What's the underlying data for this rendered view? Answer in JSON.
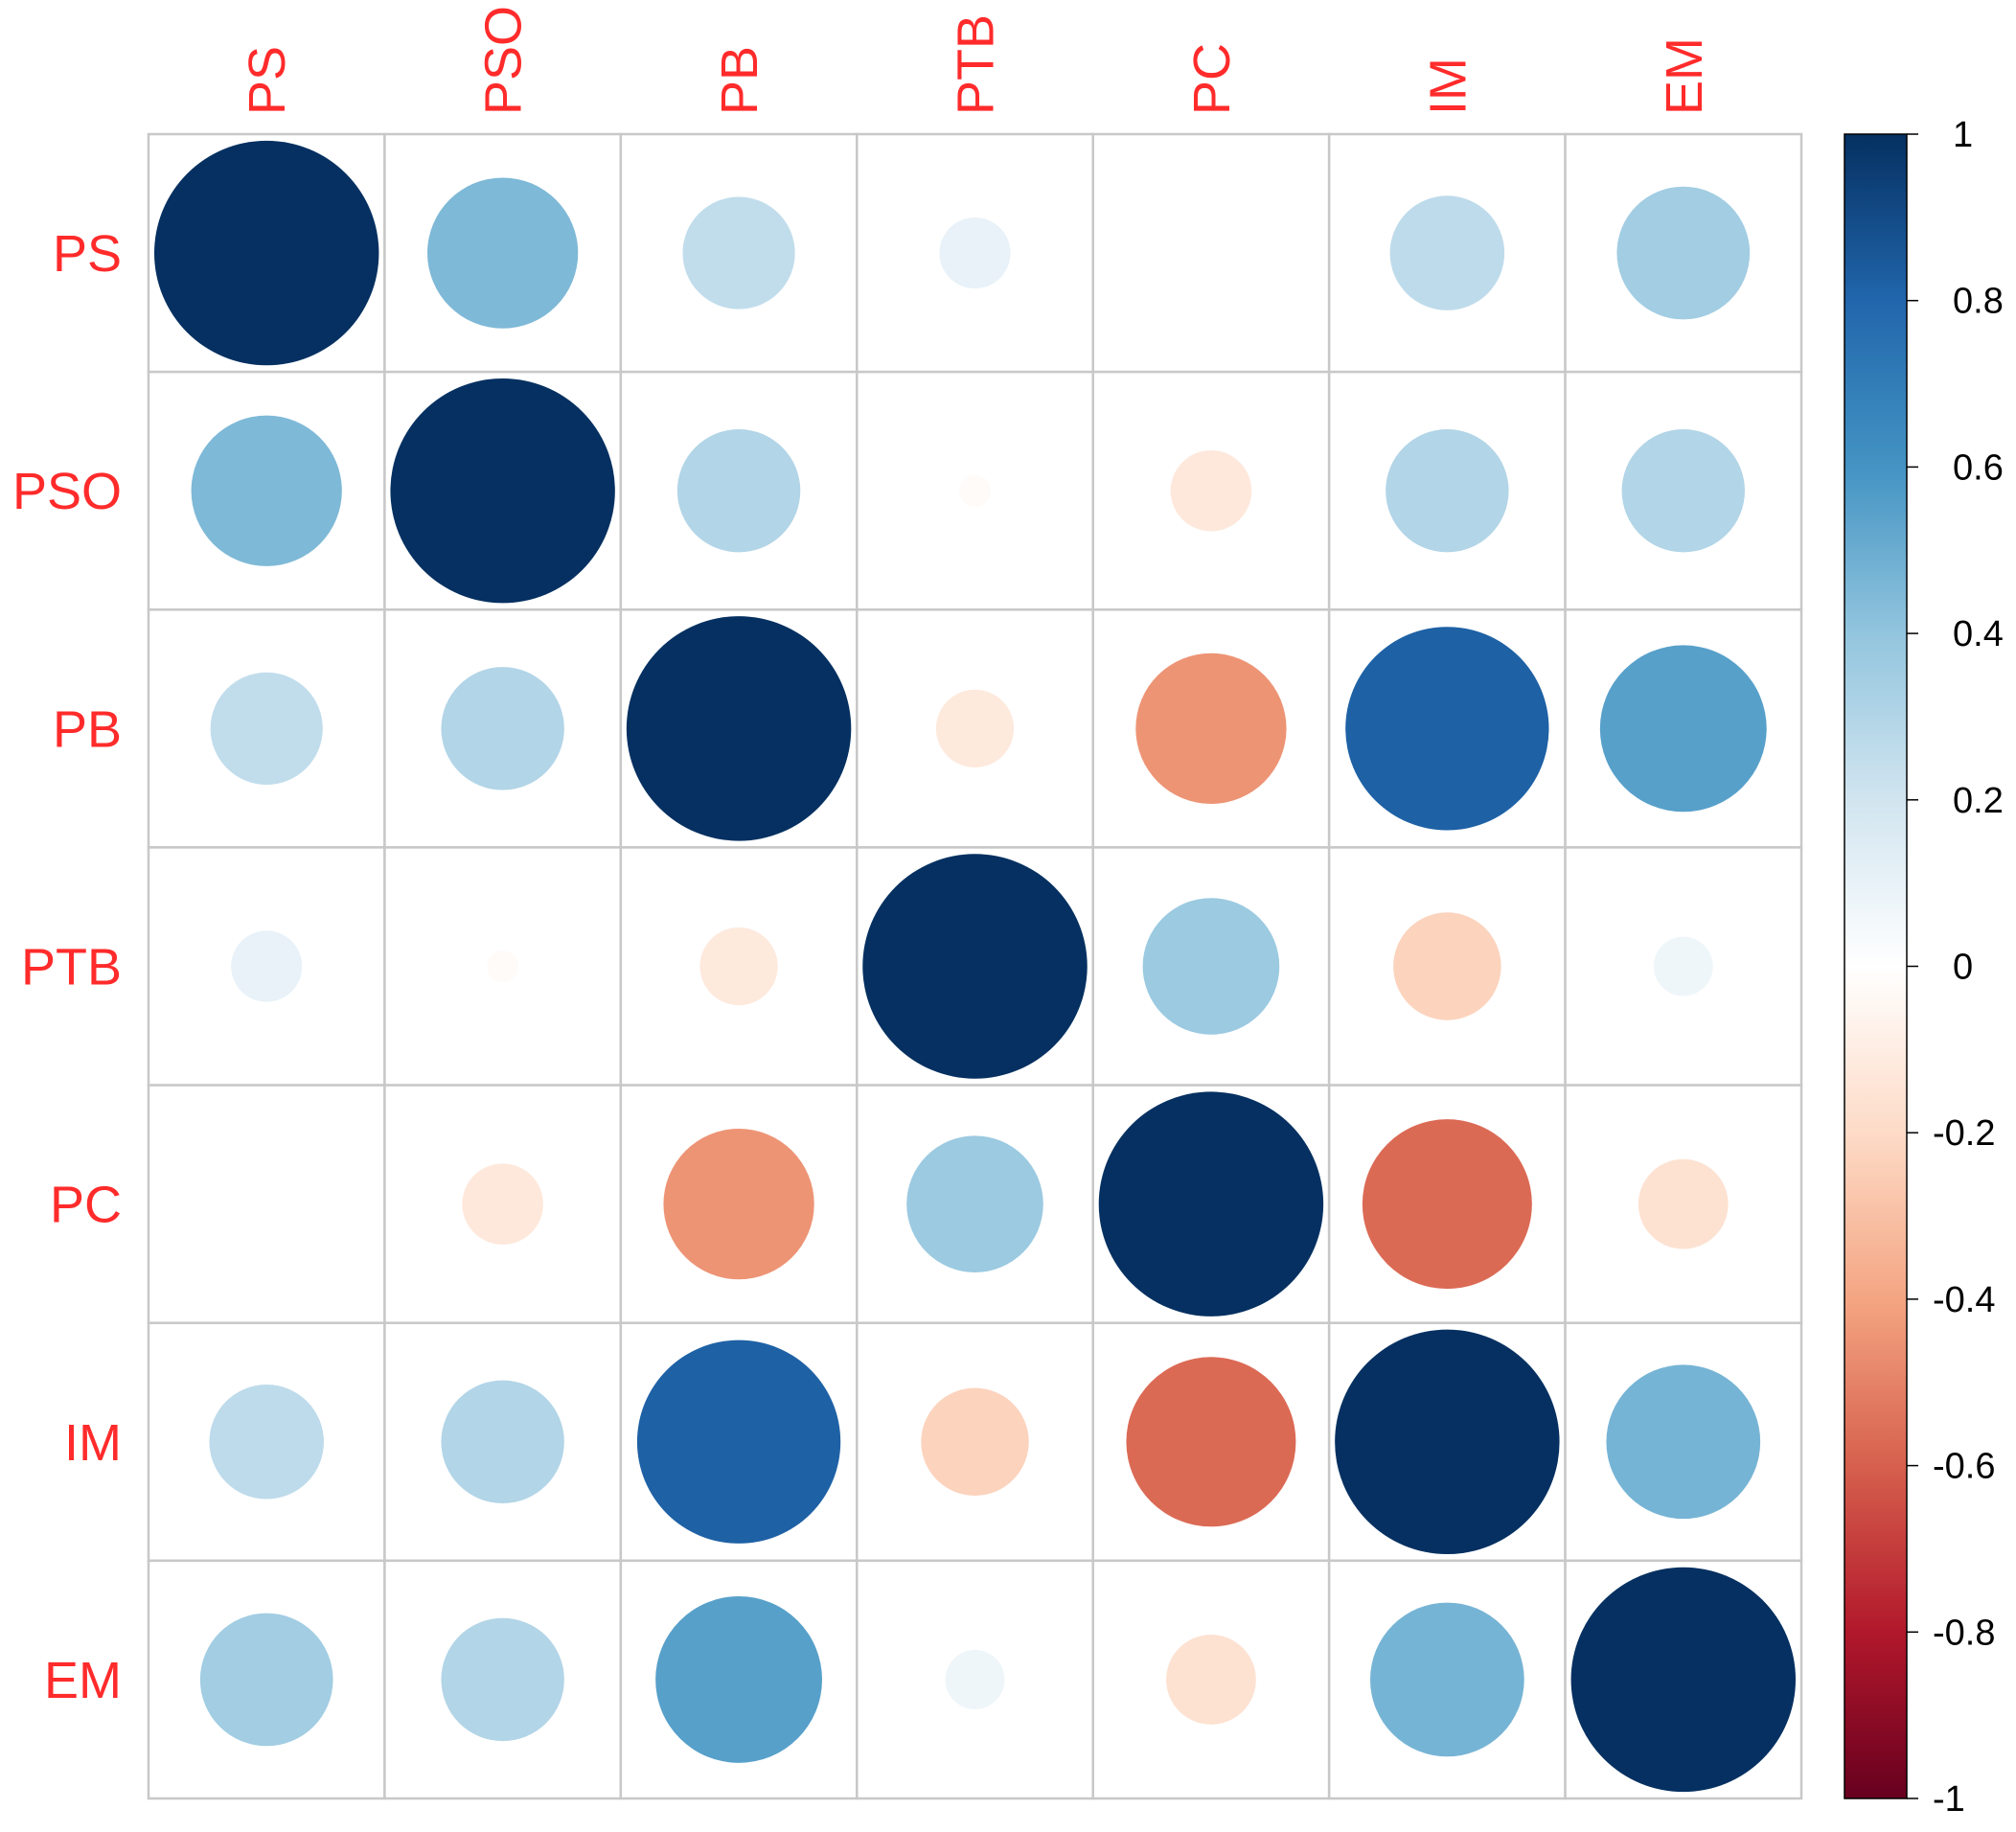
{
  "chart_data": {
    "type": "heatmap",
    "subtype": "correlation-circle-matrix",
    "variables": [
      "PS",
      "PSO",
      "PB",
      "PTB",
      "PC",
      "IM",
      "EM"
    ],
    "values": [
      [
        1.0,
        0.45,
        0.25,
        0.1,
        0.0,
        0.26,
        0.35
      ],
      [
        0.45,
        1.0,
        0.3,
        -0.02,
        -0.13,
        0.3,
        0.3
      ],
      [
        0.25,
        0.3,
        1.0,
        -0.12,
        -0.45,
        0.82,
        0.55
      ],
      [
        0.1,
        -0.02,
        -0.12,
        1.0,
        0.37,
        -0.23,
        0.07
      ],
      [
        0.0,
        -0.13,
        -0.45,
        0.37,
        1.0,
        -0.57,
        -0.16
      ],
      [
        0.26,
        0.3,
        0.82,
        -0.23,
        -0.57,
        1.0,
        0.47
      ],
      [
        0.35,
        0.3,
        0.55,
        0.07,
        -0.16,
        0.47,
        1.0
      ]
    ],
    "colorbar": {
      "ticks": [
        "1",
        "0.8",
        "0.6",
        "0.4",
        "0.2",
        "0",
        "-0.2",
        "-0.4",
        "-0.6",
        "-0.8",
        "-1"
      ],
      "range": [
        -1,
        1
      ],
      "position": "right"
    },
    "grid": true,
    "label_color": "#ff2b2b",
    "colors": {
      "strong_negative": "#67001f",
      "negative": "#d6604d",
      "light_negative": "#fddbc7",
      "neutral": "#ffffff",
      "light_positive": "#d1e5f0",
      "positive": "#4393c3",
      "strong_positive": "#053061"
    }
  }
}
